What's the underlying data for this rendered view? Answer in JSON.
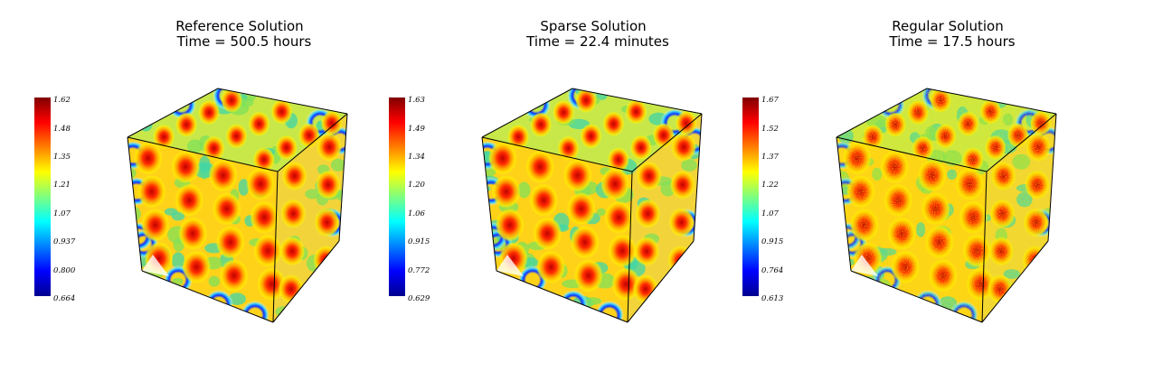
{
  "chart_data": [
    {
      "type": "heatmap",
      "title": "Reference Solution",
      "subtitle": "Time = 500.5 hours",
      "colormap": "jet",
      "colorbar_ticks": [
        "1.62",
        "1.48",
        "1.35",
        "1.21",
        "1.07",
        "0.937",
        "0.800",
        "0.664"
      ],
      "colorbar_range": [
        0.664,
        1.62
      ],
      "texture": "smooth"
    },
    {
      "type": "heatmap",
      "title": "Sparse Solution",
      "subtitle": "Time = 22.4 minutes",
      "colormap": "jet",
      "colorbar_ticks": [
        "1.63",
        "1.49",
        "1.34",
        "1.20",
        "1.06",
        "0.915",
        "0.772",
        "0.629"
      ],
      "colorbar_range": [
        0.629,
        1.63
      ],
      "texture": "smooth"
    },
    {
      "type": "heatmap",
      "title": "Regular Solution",
      "subtitle": "Time = 17.5 hours",
      "colormap": "jet",
      "colorbar_ticks": [
        "1.67",
        "1.52",
        "1.37",
        "1.22",
        "1.07",
        "0.915",
        "0.764",
        "0.613"
      ],
      "colorbar_range": [
        0.613,
        1.67
      ],
      "texture": "noisy"
    }
  ]
}
